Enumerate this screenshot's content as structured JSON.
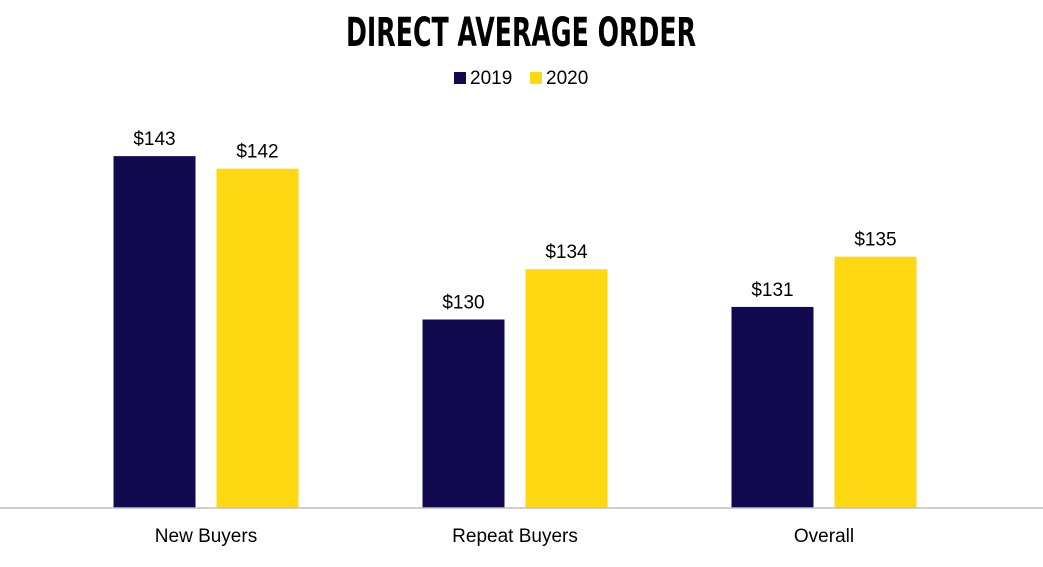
{
  "chart_data": {
    "type": "bar",
    "title": "DIRECT AVERAGE ORDER",
    "categories": [
      "New Buyers",
      "Repeat Buyers",
      "Overall"
    ],
    "series": [
      {
        "name": "2019",
        "values": [
          143,
          130,
          131
        ],
        "labels": [
          "$143",
          "$130",
          "$131"
        ],
        "color": "#120a4f"
      },
      {
        "name": "2020",
        "values": [
          142,
          134,
          135
        ],
        "labels": [
          "$142",
          "$134",
          "$135"
        ],
        "color": "#fdd813"
      }
    ],
    "ylim": [
      115,
      145
    ],
    "grid": false,
    "legend": "top-center",
    "xlabel": "",
    "ylabel": ""
  }
}
